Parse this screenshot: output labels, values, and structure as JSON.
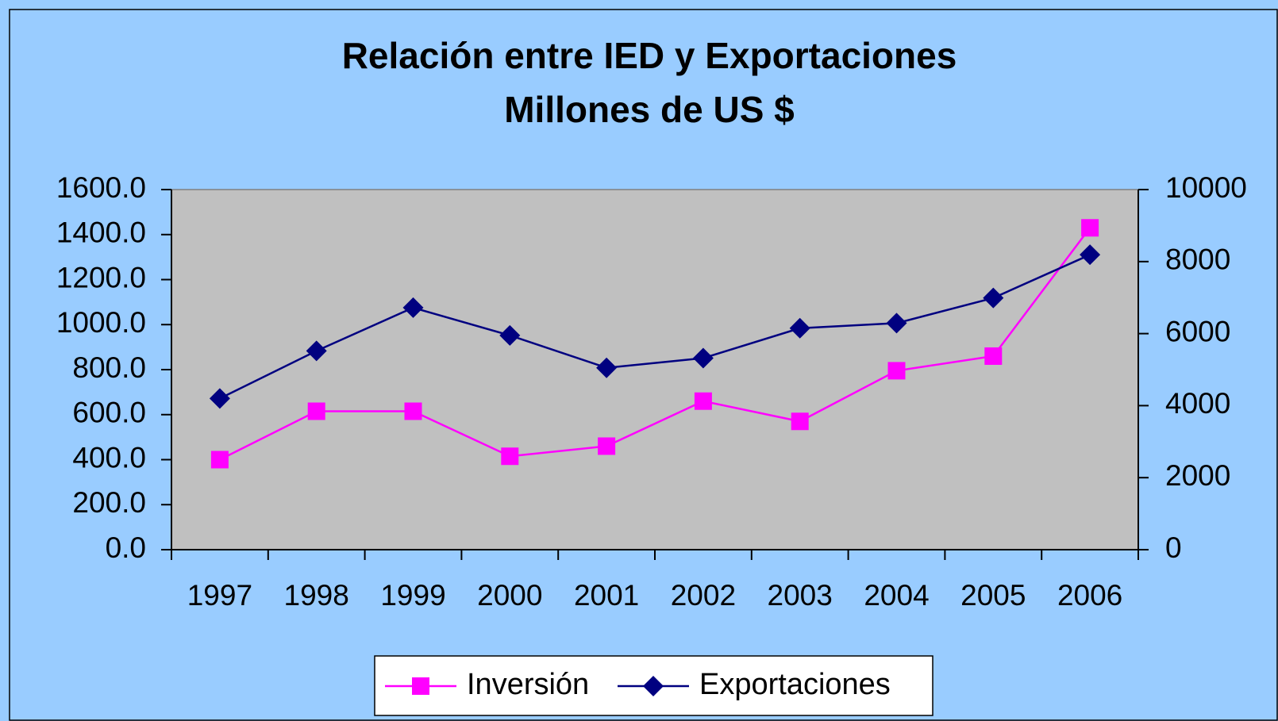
{
  "chart_data": {
    "type": "line",
    "title": "Relación entre IED y Exportaciones",
    "subtitle": "Millones de US $",
    "categories": [
      "1997",
      "1998",
      "1999",
      "2000",
      "2001",
      "2002",
      "2003",
      "2004",
      "2005",
      "2006"
    ],
    "series": [
      {
        "name": "Inversión",
        "color": "#ff00ff",
        "marker": "square",
        "values": [
          400,
          615,
          615,
          415,
          460,
          660,
          570,
          795,
          860,
          1430
        ]
      },
      {
        "name": "Exportaciones",
        "color": "#000080",
        "marker": "diamond",
        "axis": "y2",
        "values": [
          4200,
          5520,
          6720,
          5950,
          5050,
          5320,
          6150,
          6290,
          6990,
          8190
        ]
      }
    ],
    "ylim": [
      0,
      1600
    ],
    "yticks": [
      {
        "value": 0,
        "label": "0.0"
      },
      {
        "value": 200,
        "label": "200.0"
      },
      {
        "value": 400,
        "label": "400.0"
      },
      {
        "value": 600,
        "label": "600.0"
      },
      {
        "value": 800,
        "label": "800.0"
      },
      {
        "value": 1000,
        "label": "1000.0"
      },
      {
        "value": 1200,
        "label": "1200.0"
      },
      {
        "value": 1400,
        "label": "1400.0"
      },
      {
        "value": 1600,
        "label": "1600.0"
      }
    ],
    "y2lim": [
      0,
      10000
    ],
    "y2ticks": [
      0,
      2000,
      4000,
      6000,
      8000,
      10000
    ],
    "grid": false,
    "legend": "bottom"
  }
}
